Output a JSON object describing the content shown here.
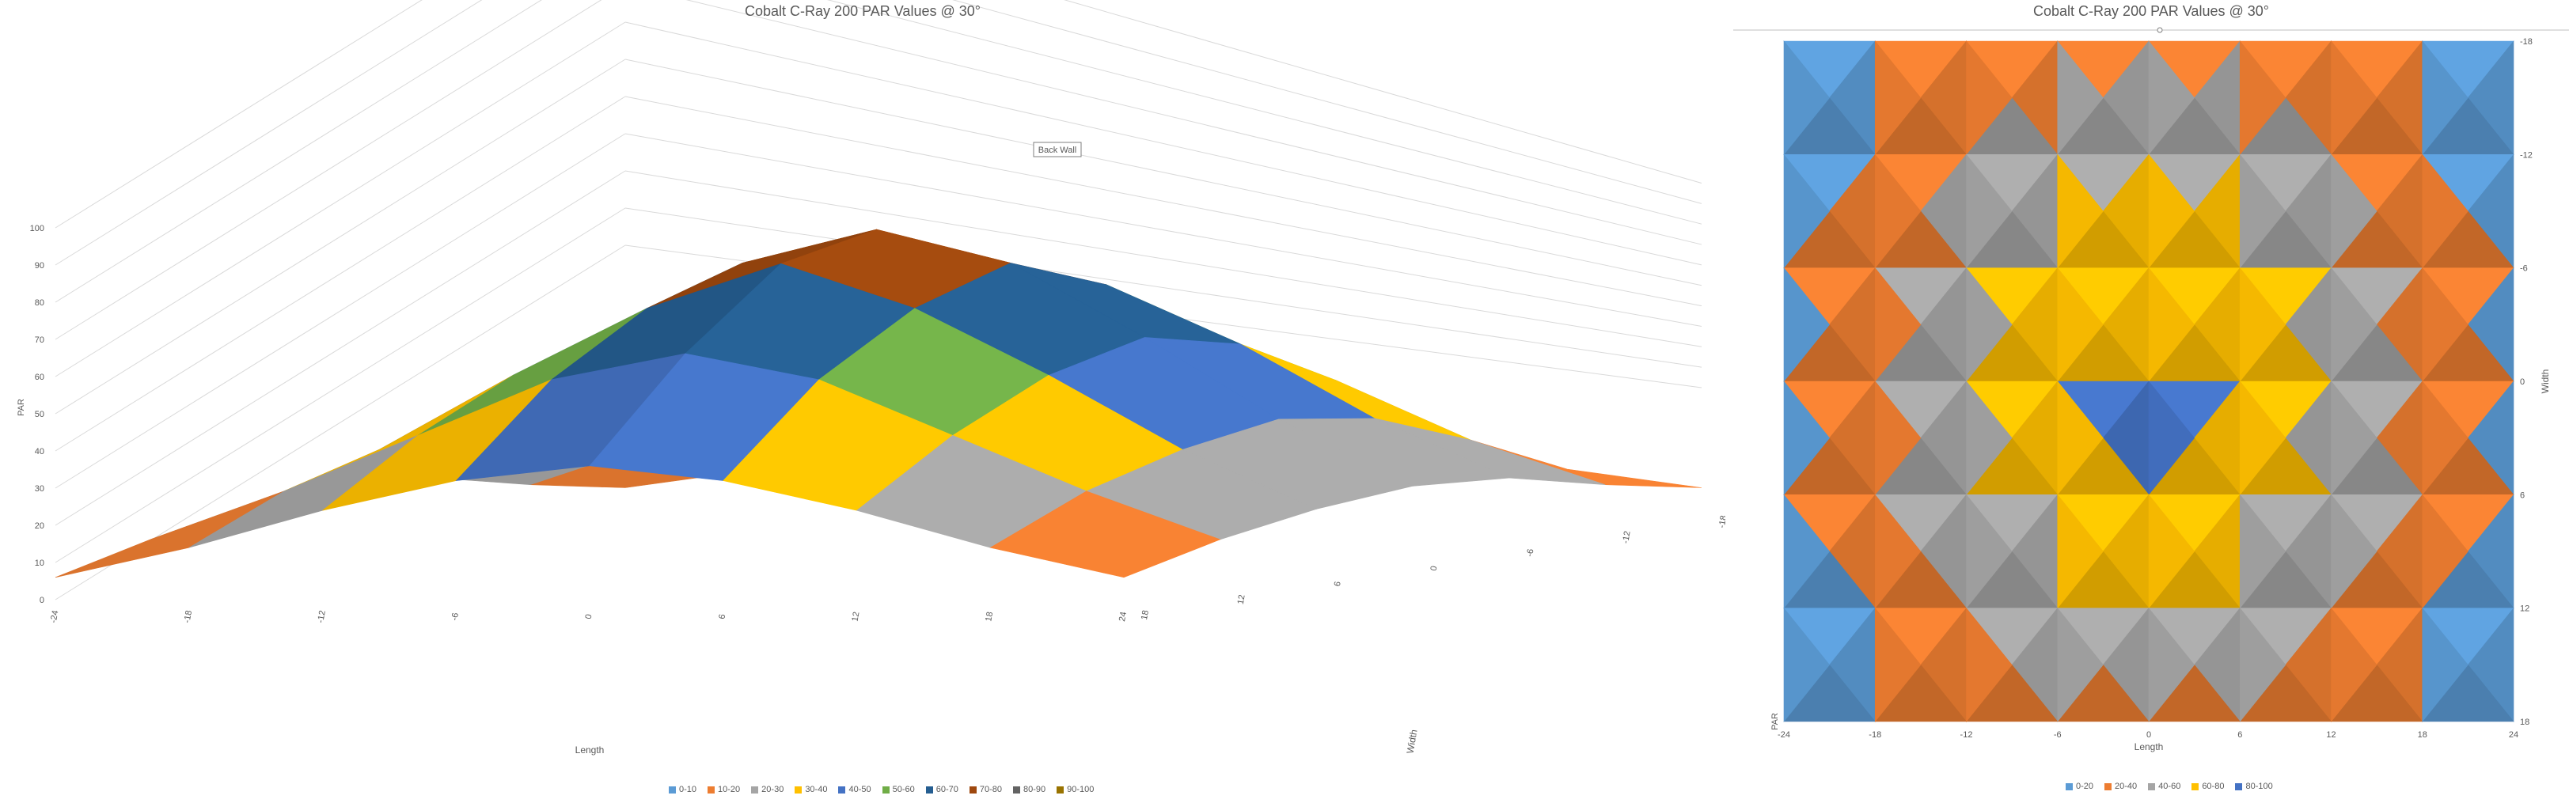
{
  "chart_data": [
    {
      "type": "surface-3d",
      "title": "Cobalt C-Ray 200 PAR Values @ 30°",
      "xlabel": "Length",
      "ylabel": "Width",
      "zlabel": "PAR",
      "x": [
        -24,
        -18,
        -12,
        -6,
        0,
        6,
        12,
        18,
        24
      ],
      "y": [
        18,
        12,
        6,
        0,
        -6,
        -12,
        -18
      ],
      "zlim": [
        0,
        100
      ],
      "z_ticks": [
        0,
        10,
        20,
        30,
        40,
        50,
        60,
        70,
        80,
        90,
        100
      ],
      "annotation": "Back Wall",
      "values": [
        [
          5,
          10,
          20,
          28,
          32,
          28,
          20,
          10,
          5
        ],
        [
          10,
          22,
          38,
          50,
          55,
          50,
          38,
          22,
          10
        ],
        [
          16,
          32,
          52,
          68,
          74,
          68,
          52,
          32,
          16
        ],
        [
          18,
          36,
          58,
          78,
          87,
          78,
          58,
          36,
          18
        ],
        [
          16,
          32,
          52,
          70,
          82,
          70,
          52,
          32,
          16
        ],
        [
          12,
          25,
          40,
          55,
          62,
          55,
          40,
          25,
          12
        ],
        [
          6,
          14,
          24,
          32,
          36,
          32,
          24,
          14,
          6
        ]
      ],
      "legend": [
        {
          "label": "0-10",
          "color": "#5b9bd5"
        },
        {
          "label": "10-20",
          "color": "#ed7d31"
        },
        {
          "label": "20-30",
          "color": "#a5a5a5"
        },
        {
          "label": "30-40",
          "color": "#ffc000"
        },
        {
          "label": "40-50",
          "color": "#4472c4"
        },
        {
          "label": "50-60",
          "color": "#70ad47"
        },
        {
          "label": "60-70",
          "color": "#255e91"
        },
        {
          "label": "70-80",
          "color": "#9e480e"
        },
        {
          "label": "80-90",
          "color": "#636363"
        },
        {
          "label": "90-100",
          "color": "#997300"
        }
      ]
    },
    {
      "type": "contour",
      "title": "Cobalt C-Ray 200 PAR Values @ 30°",
      "xlabel": "Length",
      "ylabel": "Width",
      "zlabel": "PAR",
      "x": [
        -24,
        -18,
        -12,
        -6,
        0,
        6,
        12,
        18,
        24
      ],
      "y": [
        -18,
        -12,
        -6,
        0,
        6,
        12,
        18
      ],
      "values": [
        [
          5,
          12,
          22,
          30,
          34,
          30,
          22,
          12,
          5
        ],
        [
          10,
          22,
          40,
          52,
          58,
          52,
          40,
          22,
          10
        ],
        [
          14,
          30,
          52,
          66,
          74,
          66,
          52,
          30,
          14
        ],
        [
          16,
          34,
          56,
          76,
          86,
          76,
          56,
          34,
          16
        ],
        [
          15,
          32,
          54,
          72,
          82,
          72,
          54,
          32,
          15
        ],
        [
          11,
          24,
          40,
          54,
          60,
          54,
          40,
          24,
          11
        ],
        [
          6,
          14,
          24,
          32,
          36,
          32,
          24,
          14,
          6
        ]
      ],
      "legend": [
        {
          "label": "0-20",
          "color": "#5b9bd5"
        },
        {
          "label": "20-40",
          "color": "#ed7d31"
        },
        {
          "label": "40-60",
          "color": "#a5a5a5"
        },
        {
          "label": "60-80",
          "color": "#ffc000"
        },
        {
          "label": "80-100",
          "color": "#4472c4"
        }
      ]
    }
  ]
}
